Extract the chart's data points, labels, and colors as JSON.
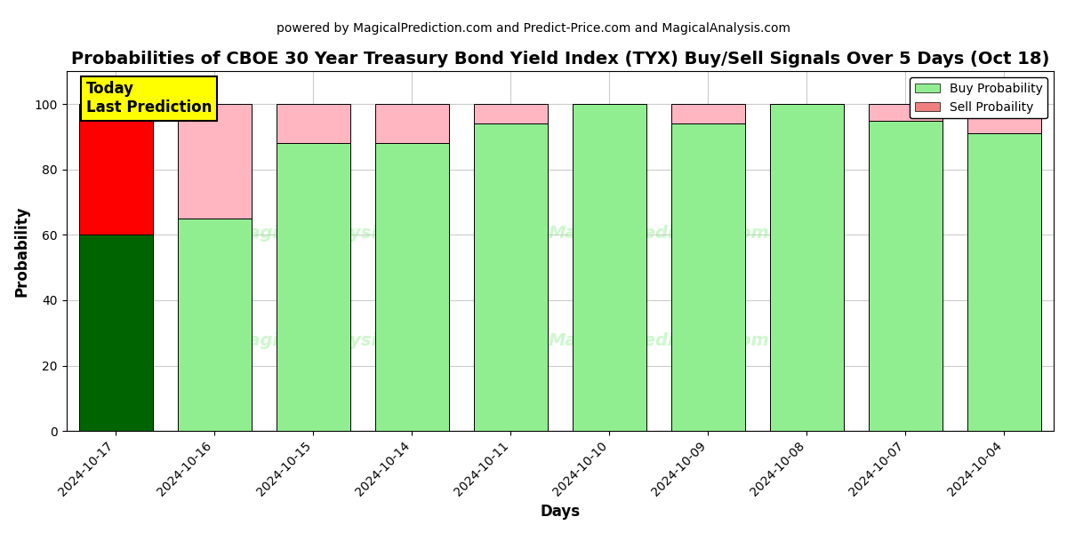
{
  "title": "Probabilities of CBOE 30 Year Treasury Bond Yield Index (TYX) Buy/Sell Signals Over 5 Days (Oct 18)",
  "subtitle": "powered by MagicalPrediction.com and Predict-Price.com and MagicalAnalysis.com",
  "xlabel": "Days",
  "ylabel": "Probability",
  "categories": [
    "2024-10-17",
    "2024-10-16",
    "2024-10-15",
    "2024-10-14",
    "2024-10-11",
    "2024-10-10",
    "2024-10-09",
    "2024-10-08",
    "2024-10-07",
    "2024-10-04"
  ],
  "buy_values": [
    60,
    65,
    88,
    88,
    94,
    100,
    94,
    100,
    95,
    91
  ],
  "sell_values": [
    40,
    35,
    12,
    12,
    6,
    0,
    6,
    0,
    5,
    9
  ],
  "buy_colors": [
    "#006400",
    "#90EE90",
    "#90EE90",
    "#90EE90",
    "#90EE90",
    "#90EE90",
    "#90EE90",
    "#90EE90",
    "#90EE90",
    "#90EE90"
  ],
  "sell_colors": [
    "#FF0000",
    "#FFB6C1",
    "#FFB6C1",
    "#FFB6C1",
    "#FFB6C1",
    "#FFB6C1",
    "#FFB6C1",
    "#FFB6C1",
    "#FFB6C1",
    "#FFB6C1"
  ],
  "sell_color_legend": "#F08080",
  "buy_color_legend": "#90EE90",
  "ylim": [
    0,
    110
  ],
  "dashed_line_y": 110,
  "today_box_text": "Today\nLast Prediction",
  "today_box_color": "#FFFF00",
  "background_color": "#ffffff",
  "grid_color": "#cccccc",
  "title_fontsize": 14,
  "subtitle_fontsize": 10,
  "axis_label_fontsize": 12,
  "tick_fontsize": 10,
  "watermark_color": "#90EE90",
  "watermark_alpha": 0.45,
  "bar_width": 0.75,
  "legend_label_buy": "Buy Probability",
  "legend_label_sell": "Sell Probaility"
}
